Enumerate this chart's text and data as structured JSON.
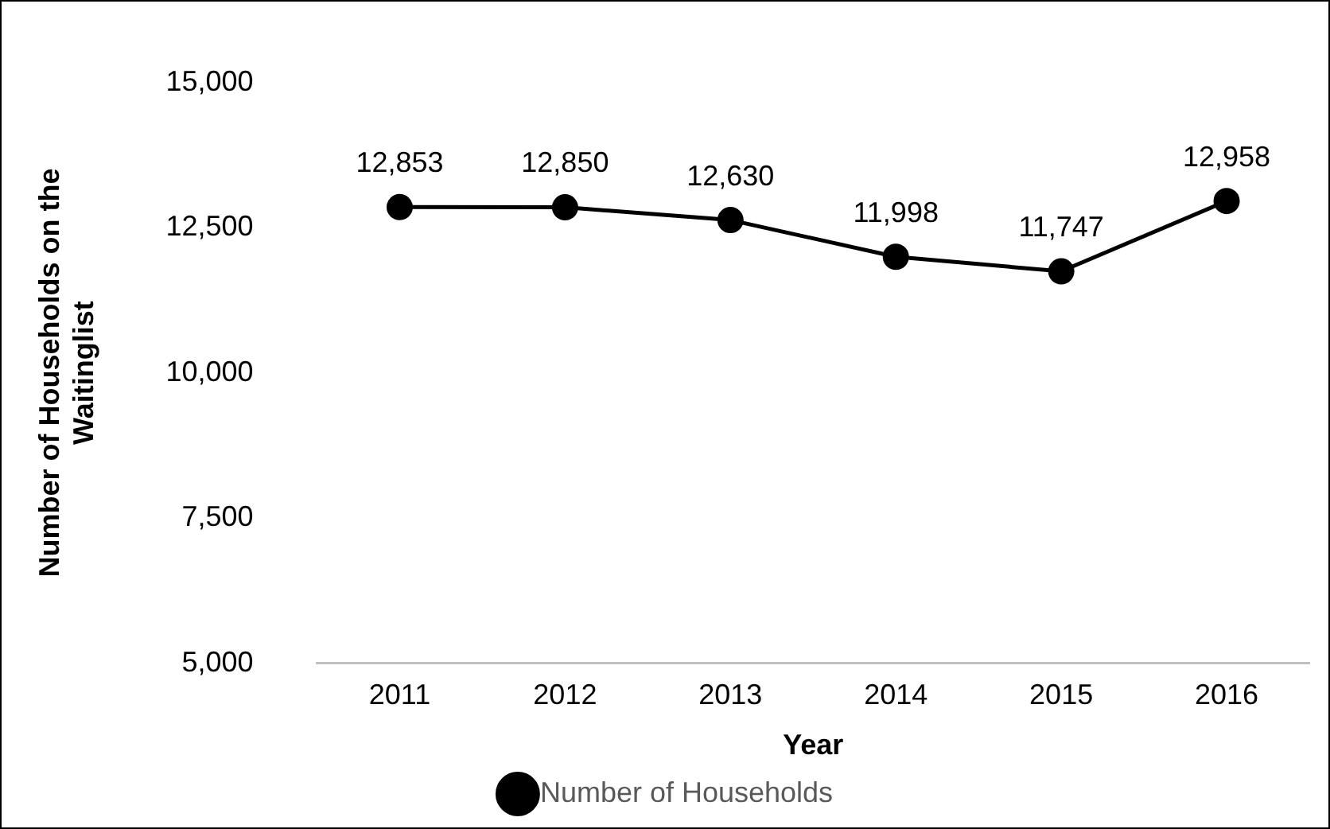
{
  "chart_data": {
    "type": "line",
    "xlabel": "Year",
    "ylabel": "Number of Households on the Waitinglist",
    "categories": [
      "2011",
      "2012",
      "2013",
      "2014",
      "2015",
      "2016"
    ],
    "series": [
      {
        "name": "Number of Households",
        "color": "#000000",
        "values": [
          12853,
          12850,
          12630,
          11998,
          11747,
          12958
        ],
        "value_labels": [
          "12,853",
          "12,850",
          "12,630",
          "11,998",
          "11,747",
          "12,958"
        ]
      }
    ],
    "ylim": [
      5000,
      15000
    ],
    "yticks": [
      {
        "value": 5000,
        "label": "5,000"
      },
      {
        "value": 7500,
        "label": "7,500"
      },
      {
        "value": 10000,
        "label": "10,000"
      },
      {
        "value": 12500,
        "label": "12,500"
      },
      {
        "value": 15000,
        "label": "15,000"
      }
    ],
    "grid": false,
    "legend": "bottom",
    "marker": "circle",
    "line_style": "solid"
  }
}
